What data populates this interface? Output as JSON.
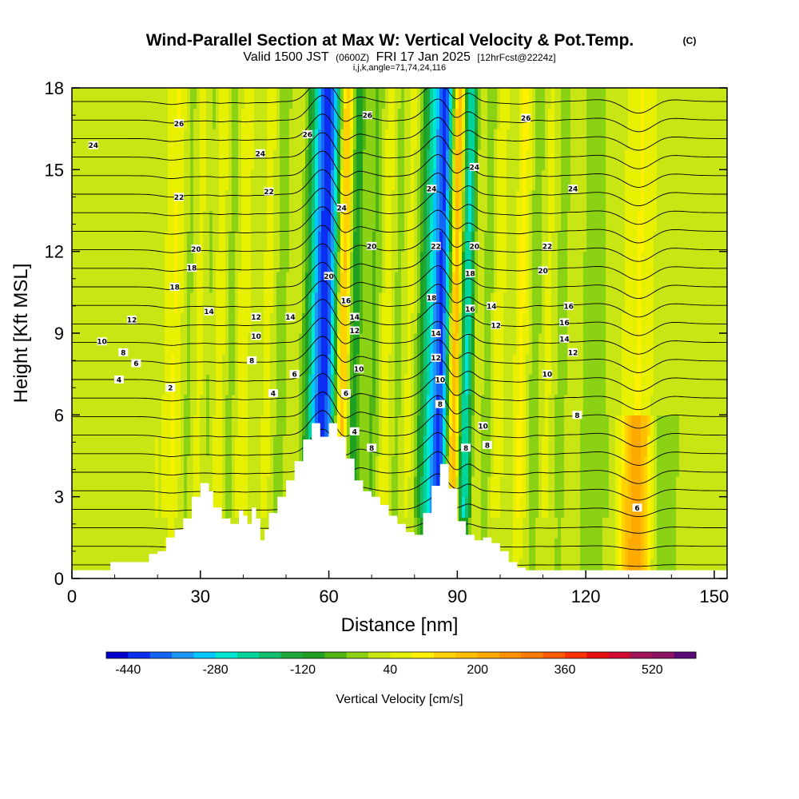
{
  "header": {
    "title": "Wind-Parallel Section at Max W: Vertical Velocity & Pot.Temp.",
    "copyright": "(C)",
    "valid_prefix": "Valid 1500 JST",
    "valid_utc": "(0600Z)",
    "valid_date": "FRI 17 Jan 2025",
    "forecast": "[12hrFcst@2224z]",
    "indices": "i,j,k,angle=71,74,24,116"
  },
  "chart_data": {
    "type": "heatmap",
    "xlabel": "Distance [nm]",
    "ylabel": "Height [Kft MSL]",
    "xlim": [
      0,
      153
    ],
    "ylim": [
      0,
      18
    ],
    "x_ticks": [
      "0",
      "30",
      "60",
      "90",
      "120",
      "150"
    ],
    "y_ticks": [
      "0",
      "3",
      "6",
      "9",
      "12",
      "15",
      "18"
    ],
    "colorbar": {
      "label": "Vertical Velocity [cm/s]",
      "tick_labels": [
        "-440",
        "-280",
        "-120",
        "40",
        "200",
        "360",
        "520"
      ],
      "levels": [
        -480,
        -440,
        -400,
        -360,
        -320,
        -280,
        -240,
        -200,
        -160,
        -120,
        -80,
        -40,
        0,
        40,
        80,
        120,
        160,
        200,
        240,
        280,
        320,
        360,
        400,
        440,
        480,
        520,
        560
      ],
      "colors": [
        "#0000cd",
        "#0a2ff0",
        "#1464f5",
        "#1e96f8",
        "#00c8ff",
        "#00e6d2",
        "#00d49a",
        "#14be6e",
        "#1ea83c",
        "#20a020",
        "#50b414",
        "#8cd214",
        "#c8e614",
        "#e6f000",
        "#fff000",
        "#ffd200",
        "#ffbe00",
        "#ffaa00",
        "#ff9100",
        "#ff7800",
        "#ff5a00",
        "#ff3200",
        "#e60f0f",
        "#d20a32",
        "#a0145a",
        "#8c1464",
        "#5a0a78"
      ]
    },
    "terrain": [
      [
        0,
        0.3
      ],
      [
        8,
        0.3
      ],
      [
        9,
        0.6
      ],
      [
        17,
        0.6
      ],
      [
        18,
        0.9
      ],
      [
        20,
        1.0
      ],
      [
        22,
        1.5
      ],
      [
        24,
        1.8
      ],
      [
        26,
        2.2
      ],
      [
        28,
        3.0
      ],
      [
        30,
        3.5
      ],
      [
        31,
        3.5
      ],
      [
        32,
        3.2
      ],
      [
        33,
        2.6
      ],
      [
        35,
        2.2
      ],
      [
        37,
        2.0
      ],
      [
        39,
        2.5
      ],
      [
        40,
        2.3
      ],
      [
        41,
        2.0
      ],
      [
        42,
        2.6
      ],
      [
        43,
        2.2
      ],
      [
        44,
        1.4
      ],
      [
        45,
        1.8
      ],
      [
        46,
        2.4
      ],
      [
        48,
        3.0
      ],
      [
        50,
        3.6
      ],
      [
        52,
        4.3
      ],
      [
        54,
        5.1
      ],
      [
        56,
        5.7
      ],
      [
        58,
        5.2
      ],
      [
        60,
        5.7
      ],
      [
        62,
        5.2
      ],
      [
        64,
        4.4
      ],
      [
        66,
        3.6
      ],
      [
        68,
        3.2
      ],
      [
        70,
        3.0
      ],
      [
        72,
        2.7
      ],
      [
        74,
        2.3
      ],
      [
        76,
        2.0
      ],
      [
        78,
        1.7
      ],
      [
        80,
        1.6
      ],
      [
        82,
        2.4
      ],
      [
        84,
        3.4
      ],
      [
        86,
        4.2
      ],
      [
        88,
        3.3
      ],
      [
        90,
        2.1
      ],
      [
        92,
        1.6
      ],
      [
        94,
        1.4
      ],
      [
        96,
        1.5
      ],
      [
        98,
        1.3
      ],
      [
        100,
        1.0
      ],
      [
        102,
        0.6
      ],
      [
        104,
        0.4
      ],
      [
        106,
        0.3
      ],
      [
        153,
        0.3
      ]
    ],
    "theta_label_samples": [
      {
        "x": 5,
        "y": 15.9,
        "t": "24"
      },
      {
        "x": 25,
        "y": 16.7,
        "t": "26"
      },
      {
        "x": 44,
        "y": 15.6,
        "t": "24"
      },
      {
        "x": 55,
        "y": 16.3,
        "t": "26"
      },
      {
        "x": 69,
        "y": 17.0,
        "t": "26"
      },
      {
        "x": 106,
        "y": 16.9,
        "t": "26"
      },
      {
        "x": 25,
        "y": 14.0,
        "t": "22"
      },
      {
        "x": 46,
        "y": 14.2,
        "t": "22"
      },
      {
        "x": 63,
        "y": 13.6,
        "t": "24"
      },
      {
        "x": 84,
        "y": 14.3,
        "t": "24"
      },
      {
        "x": 94,
        "y": 15.1,
        "t": "24"
      },
      {
        "x": 117,
        "y": 14.3,
        "t": "24"
      },
      {
        "x": 29,
        "y": 12.1,
        "t": "20"
      },
      {
        "x": 28,
        "y": 11.4,
        "t": "18"
      },
      {
        "x": 24,
        "y": 10.7,
        "t": "18"
      },
      {
        "x": 70,
        "y": 12.2,
        "t": "20"
      },
      {
        "x": 85,
        "y": 12.2,
        "t": "22"
      },
      {
        "x": 94,
        "y": 12.2,
        "t": "20"
      },
      {
        "x": 111,
        "y": 12.2,
        "t": "22"
      },
      {
        "x": 110,
        "y": 11.3,
        "t": "20"
      },
      {
        "x": 14,
        "y": 9.5,
        "t": "12"
      },
      {
        "x": 7,
        "y": 8.7,
        "t": "10"
      },
      {
        "x": 12,
        "y": 8.3,
        "t": "8"
      },
      {
        "x": 15,
        "y": 7.9,
        "t": "6"
      },
      {
        "x": 11,
        "y": 7.3,
        "t": "4"
      },
      {
        "x": 23,
        "y": 7.0,
        "t": "2"
      },
      {
        "x": 32,
        "y": 9.8,
        "t": "14"
      },
      {
        "x": 43,
        "y": 9.6,
        "t": "12"
      },
      {
        "x": 43,
        "y": 8.9,
        "t": "10"
      },
      {
        "x": 42,
        "y": 8.0,
        "t": "8"
      },
      {
        "x": 51,
        "y": 9.6,
        "t": "14"
      },
      {
        "x": 52,
        "y": 7.5,
        "t": "6"
      },
      {
        "x": 47,
        "y": 6.8,
        "t": "4"
      },
      {
        "x": 60,
        "y": 11.1,
        "t": "20"
      },
      {
        "x": 64,
        "y": 10.2,
        "t": "16"
      },
      {
        "x": 66,
        "y": 9.6,
        "t": "14"
      },
      {
        "x": 66,
        "y": 9.1,
        "t": "12"
      },
      {
        "x": 67,
        "y": 7.7,
        "t": "10"
      },
      {
        "x": 64,
        "y": 6.8,
        "t": "6"
      },
      {
        "x": 66,
        "y": 5.4,
        "t": "4"
      },
      {
        "x": 70,
        "y": 4.8,
        "t": "8"
      },
      {
        "x": 84,
        "y": 10.3,
        "t": "18"
      },
      {
        "x": 85,
        "y": 9.0,
        "t": "14"
      },
      {
        "x": 85,
        "y": 8.1,
        "t": "12"
      },
      {
        "x": 86,
        "y": 7.3,
        "t": "10"
      },
      {
        "x": 86,
        "y": 6.4,
        "t": "8"
      },
      {
        "x": 93,
        "y": 11.2,
        "t": "18"
      },
      {
        "x": 93,
        "y": 9.9,
        "t": "16"
      },
      {
        "x": 98,
        "y": 10.0,
        "t": "14"
      },
      {
        "x": 99,
        "y": 9.3,
        "t": "12"
      },
      {
        "x": 96,
        "y": 5.6,
        "t": "10"
      },
      {
        "x": 92,
        "y": 4.8,
        "t": "8"
      },
      {
        "x": 97,
        "y": 4.9,
        "t": "8"
      },
      {
        "x": 116,
        "y": 10.0,
        "t": "16"
      },
      {
        "x": 115,
        "y": 9.4,
        "t": "16"
      },
      {
        "x": 115,
        "y": 8.8,
        "t": "14"
      },
      {
        "x": 117,
        "y": 8.3,
        "t": "12"
      },
      {
        "x": 111,
        "y": 7.5,
        "t": "10"
      },
      {
        "x": 118,
        "y": 6.0,
        "t": "8"
      },
      {
        "x": 132,
        "y": 2.6,
        "t": "6"
      }
    ]
  }
}
